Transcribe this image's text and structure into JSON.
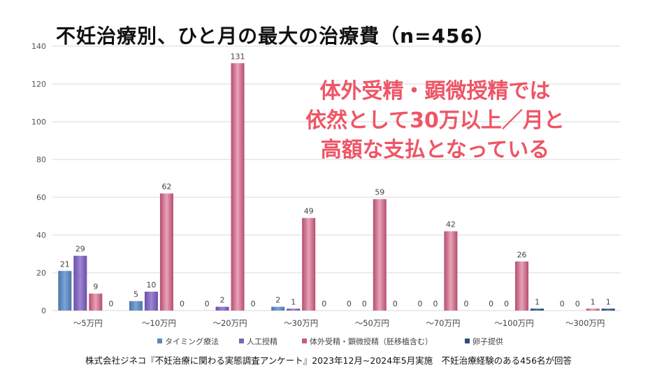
{
  "title": "不妊治療別、ひと月の最大の治療費（n=456）",
  "callout": [
    "体外受精・顕微授精では",
    "依然として30万以上／月と",
    "高額な支払となっている"
  ],
  "footer": "株式会社ジネコ『不妊治療に関わる実態調査アンケート』2023年12月~2024年5月実施　不妊治療経験のある456名が回答",
  "colors": {
    "timing": "#5b86be",
    "artificial": "#7f63b8",
    "ivf": "#c65c80",
    "egg": "#2c4f7c",
    "callout": "#ee5566",
    "grid": "#d9d9d9"
  },
  "chart_data": {
    "type": "bar",
    "categories": [
      "～5万円",
      "～10万円",
      "～20万円",
      "～30万円",
      "～50万円",
      "～70万円",
      "～100万円",
      "～300万円"
    ],
    "series": [
      {
        "name": "タイミング療法",
        "color_key": "timing",
        "values": [
          21,
          5,
          0,
          2,
          0,
          0,
          0,
          0
        ]
      },
      {
        "name": "人工授精",
        "color_key": "artificial",
        "values": [
          29,
          10,
          2,
          1,
          0,
          0,
          0,
          0
        ]
      },
      {
        "name": "体外受精・顕微授精（胚移植含む）",
        "color_key": "ivf",
        "values": [
          9,
          62,
          131,
          49,
          59,
          42,
          26,
          1
        ]
      },
      {
        "name": "卵子提供",
        "color_key": "egg",
        "values": [
          0,
          0,
          0,
          0,
          0,
          0,
          1,
          1
        ]
      }
    ],
    "ylim": [
      0,
      140
    ],
    "yticks": [
      0,
      20,
      40,
      60,
      80,
      100,
      120,
      140
    ],
    "legend_position": "bottom",
    "grid": true
  }
}
